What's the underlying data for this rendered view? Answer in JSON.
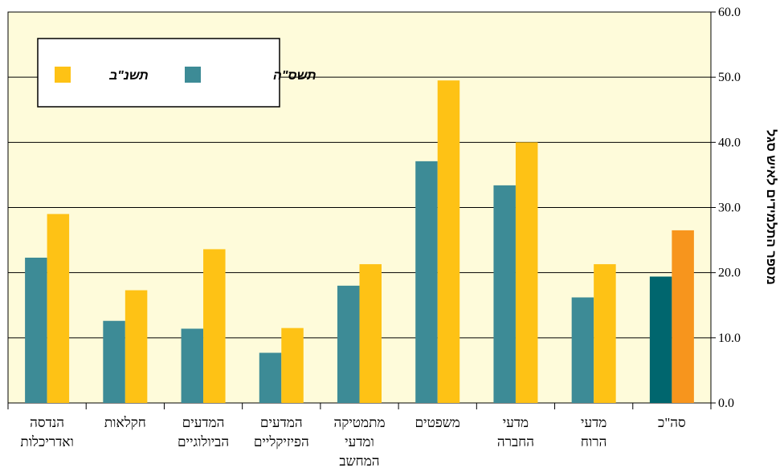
{
  "chart_data": {
    "type": "bar",
    "categories": [
      [
        "הנדסה",
        "ואדריכלות"
      ],
      [
        "חקלאות"
      ],
      [
        "המדעים",
        "הביולוגיים"
      ],
      [
        "המדעים",
        "הפיזיקליים"
      ],
      [
        "מתמטיקה",
        "ומדעי",
        "המחשב"
      ],
      [
        "משפטים"
      ],
      [
        "מדעי",
        "החברה"
      ],
      [
        "מדעי",
        "הרוח"
      ],
      [
        "סה\"כ"
      ]
    ],
    "series": [
      {
        "name": "תשנ\"ב",
        "color": "#3d8b96",
        "highlight_color": "#00666e",
        "values": [
          22.3,
          12.6,
          11.4,
          7.7,
          18.0,
          37.1,
          33.4,
          16.2,
          19.4
        ]
      },
      {
        "name": "תשס\"ה",
        "color": "#fec215",
        "highlight_color": "#f7951d",
        "values": [
          29.0,
          17.3,
          23.6,
          11.5,
          21.3,
          49.5,
          40.0,
          21.3,
          26.5
        ]
      }
    ],
    "ylabel": "מספר התלמידים לאיש סגל",
    "ylim": [
      0,
      60
    ],
    "yticks": [
      "0.0",
      "10.0",
      "20.0",
      "30.0",
      "40.0",
      "50.0",
      "60.0"
    ],
    "y_axis_side": "right",
    "grid": true,
    "legend_position": "top-left",
    "highlight_last_category": true,
    "plot_background": "#fefbda"
  }
}
